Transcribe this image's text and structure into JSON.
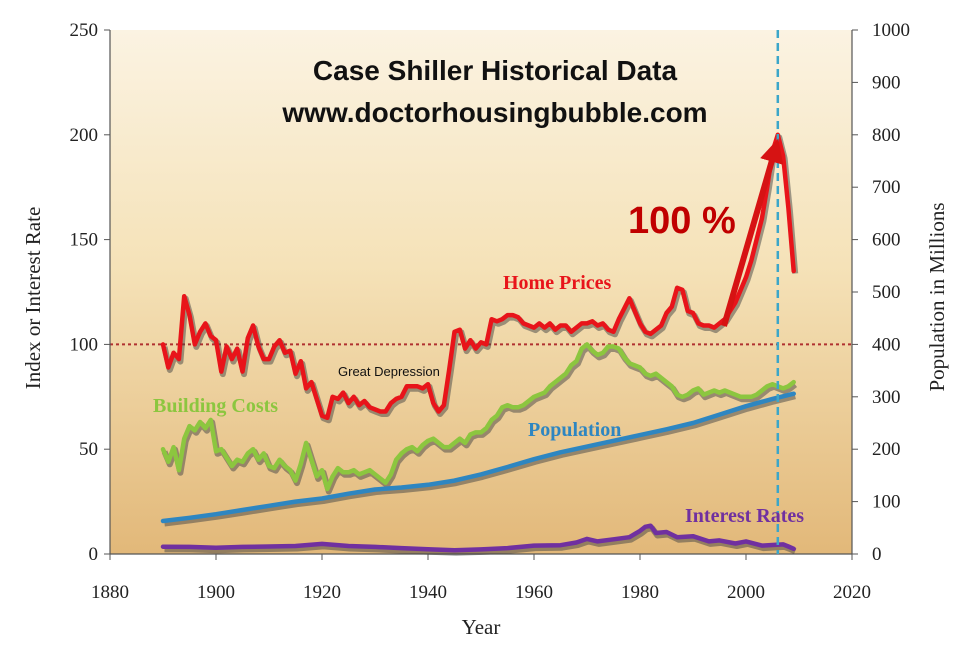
{
  "chart_data": {
    "type": "line",
    "title": "Case Shiller Historical Data",
    "subtitle": "www.doctorhousingbubble.com",
    "xlabel": "Year",
    "ylabel": "Index or Interest Rate",
    "y2label": "Population in Millions",
    "xlim": [
      1880,
      2020
    ],
    "ylim": [
      0,
      250
    ],
    "y2lim": [
      0,
      1000
    ],
    "x_ticks": [
      "1880",
      "1900",
      "1920",
      "1940",
      "1960",
      "1980",
      "2000",
      "2020"
    ],
    "y_ticks": [
      "0",
      "50",
      "100",
      "150",
      "200",
      "250"
    ],
    "y2_ticks": [
      "0",
      "100",
      "200",
      "300",
      "400",
      "500",
      "600",
      "700",
      "800",
      "900",
      "1000"
    ],
    "reference_line": {
      "y": 100
    },
    "marker_line": {
      "x": 2006
    },
    "annotations": {
      "great_depression": "Great Depression",
      "growth": "100 %"
    },
    "series": [
      {
        "name": "Home Prices",
        "axis": "left",
        "color": "#e8141a",
        "x": [
          1890,
          1891,
          1892,
          1893,
          1894,
          1895,
          1896,
          1897,
          1898,
          1899,
          1900,
          1901,
          1902,
          1903,
          1904,
          1905,
          1906,
          1907,
          1908,
          1909,
          1910,
          1911,
          1912,
          1913,
          1914,
          1915,
          1916,
          1917,
          1918,
          1919,
          1920,
          1921,
          1922,
          1923,
          1924,
          1925,
          1926,
          1927,
          1928,
          1929,
          1930,
          1931,
          1932,
          1933,
          1934,
          1935,
          1936,
          1937,
          1938,
          1939,
          1940,
          1941,
          1942,
          1943,
          1944,
          1945,
          1946,
          1947,
          1948,
          1949,
          1950,
          1951,
          1952,
          1953,
          1954,
          1955,
          1956,
          1957,
          1958,
          1959,
          1960,
          1961,
          1962,
          1963,
          1964,
          1965,
          1966,
          1967,
          1968,
          1969,
          1970,
          1971,
          1972,
          1973,
          1974,
          1975,
          1976,
          1977,
          1978,
          1979,
          1980,
          1981,
          1982,
          1983,
          1984,
          1985,
          1986,
          1987,
          1988,
          1989,
          1990,
          1991,
          1992,
          1993,
          1994,
          1995,
          1996,
          1997,
          1998,
          1999,
          2000,
          2001,
          2002,
          2003,
          2004,
          2005,
          2006,
          2007,
          2008,
          2009
        ],
        "values": [
          100,
          89,
          96,
          93,
          123,
          114,
          100,
          106,
          110,
          104,
          102,
          87,
          99,
          93,
          98,
          87,
          103,
          109,
          99,
          93,
          93,
          99,
          102,
          96,
          97,
          86,
          92,
          79,
          82,
          74,
          66,
          65,
          75,
          74,
          77,
          72,
          75,
          71,
          73,
          70,
          69,
          68,
          68,
          72,
          74,
          75,
          80,
          80,
          80,
          79,
          81,
          72,
          68,
          71,
          88,
          106,
          107,
          98,
          102,
          98,
          101,
          100,
          112,
          111,
          112,
          114,
          114,
          113,
          110,
          109,
          108,
          110,
          108,
          110,
          107,
          109,
          109,
          106,
          108,
          110,
          110,
          111,
          109,
          110,
          107,
          106,
          112,
          117,
          122,
          116,
          110,
          106,
          105,
          107,
          109,
          115,
          118,
          127,
          126,
          116,
          115,
          110,
          109,
          109,
          108,
          110,
          112,
          116,
          120,
          126,
          132,
          140,
          150,
          160,
          175,
          192,
          200,
          190,
          165,
          135
        ]
      },
      {
        "name": "Building Costs",
        "axis": "left",
        "color": "#8cc63f",
        "x": [
          1890,
          1891,
          1892,
          1893,
          1894,
          1895,
          1896,
          1897,
          1898,
          1899,
          1900,
          1901,
          1902,
          1903,
          1904,
          1905,
          1906,
          1907,
          1908,
          1909,
          1910,
          1911,
          1912,
          1913,
          1914,
          1915,
          1916,
          1917,
          1918,
          1919,
          1920,
          1921,
          1922,
          1923,
          1924,
          1925,
          1926,
          1927,
          1928,
          1929,
          1930,
          1931,
          1932,
          1933,
          1934,
          1935,
          1936,
          1937,
          1938,
          1939,
          1940,
          1941,
          1942,
          1943,
          1944,
          1945,
          1946,
          1947,
          1948,
          1949,
          1950,
          1951,
          1952,
          1953,
          1954,
          1955,
          1956,
          1957,
          1958,
          1959,
          1960,
          1961,
          1962,
          1963,
          1964,
          1965,
          1966,
          1967,
          1968,
          1969,
          1970,
          1971,
          1972,
          1973,
          1974,
          1975,
          1976,
          1977,
          1978,
          1979,
          1980,
          1981,
          1982,
          1983,
          1984,
          1985,
          1986,
          1987,
          1988,
          1989,
          1990,
          1991,
          1992,
          1993,
          1994,
          1995,
          1996,
          1997,
          1998,
          1999,
          2000,
          2001,
          2002,
          2003,
          2004,
          2005,
          2006,
          2007,
          2008,
          2009
        ],
        "values": [
          50,
          44,
          51,
          40,
          55,
          61,
          59,
          63,
          60,
          64,
          49,
          50,
          46,
          42,
          45,
          44,
          48,
          50,
          45,
          48,
          42,
          41,
          45,
          42,
          40,
          35,
          43,
          53,
          45,
          37,
          40,
          31,
          37,
          41,
          39,
          39,
          40,
          38,
          39,
          40,
          38,
          36,
          34,
          38,
          45,
          48,
          50,
          51,
          49,
          52,
          54,
          55,
          53,
          51,
          51,
          53,
          55,
          53,
          57,
          58,
          58,
          60,
          64,
          66,
          70,
          71,
          70,
          70,
          71,
          73,
          75,
          76,
          77,
          80,
          82,
          84,
          86,
          90,
          92,
          98,
          100,
          97,
          95,
          96,
          99,
          99,
          98,
          94,
          91,
          90,
          89,
          86,
          85,
          86,
          84,
          82,
          80,
          76,
          75,
          76,
          78,
          79,
          76,
          77,
          78,
          77,
          78,
          77,
          76,
          75,
          75,
          75,
          76,
          78,
          80,
          81,
          80,
          79,
          80,
          82
        ]
      },
      {
        "name": "Population",
        "axis": "right",
        "color": "#2e86c1",
        "x": [
          1890,
          1895,
          1900,
          1905,
          1910,
          1915,
          1920,
          1925,
          1930,
          1935,
          1940,
          1945,
          1950,
          1955,
          1960,
          1965,
          1970,
          1975,
          1980,
          1985,
          1990,
          1995,
          2000,
          2005,
          2009
        ],
        "values": [
          63,
          69,
          76,
          84,
          92,
          100,
          106,
          115,
          123,
          127,
          132,
          140,
          152,
          166,
          181,
          194,
          205,
          216,
          227,
          238,
          250,
          266,
          282,
          296,
          306
        ]
      },
      {
        "name": "Interest Rates",
        "axis": "left",
        "color": "#7030a0",
        "x": [
          1890,
          1895,
          1900,
          1905,
          1910,
          1915,
          1920,
          1925,
          1930,
          1935,
          1940,
          1945,
          1950,
          1955,
          1960,
          1965,
          1968,
          1970,
          1972,
          1975,
          1978,
          1980,
          1981,
          1982,
          1983,
          1985,
          1987,
          1990,
          1993,
          1995,
          1998,
          2000,
          2003,
          2005,
          2007,
          2008,
          2009
        ],
        "values": [
          3.5,
          3.4,
          3.0,
          3.4,
          3.6,
          3.8,
          4.8,
          3.8,
          3.4,
          2.8,
          2.3,
          1.8,
          2.2,
          2.8,
          4.0,
          4.2,
          5.5,
          7.2,
          6.0,
          7.0,
          8.0,
          11.0,
          13.0,
          13.5,
          10.0,
          10.5,
          8.0,
          8.5,
          6.0,
          6.5,
          5.0,
          6.0,
          4.0,
          4.3,
          4.6,
          3.6,
          2.5
        ]
      }
    ]
  }
}
